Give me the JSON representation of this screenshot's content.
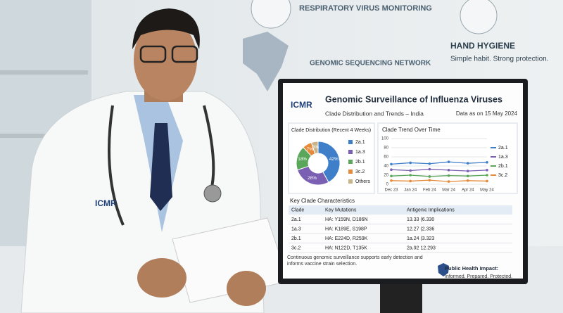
{
  "posters": {
    "virus": "RESPIRATORY VIRUS MONITORING",
    "genomic": "GENOMIC SEQUENCING NETWORK",
    "hygiene_title": "HAND HYGIENE",
    "hygiene_text": "Simple habit. Strong protection."
  },
  "coat_logo": "ICMR",
  "screen": {
    "logo": "ICMR",
    "title": "Genomic Surveillance of Influenza Viruses",
    "subtitle": "Clade Distribution and Trends – India",
    "date": "Data as on 15 May 2024",
    "donut": {
      "type": "pie",
      "title": "Clade Distribution (Recent 4 Weeks)",
      "categories": [
        "2a.1",
        "1a.3",
        "2b.1",
        "3c.2",
        "Others"
      ],
      "values": [
        42,
        28,
        18,
        7,
        5
      ],
      "value_labels": [
        "42%",
        "28%",
        "18%",
        "7%",
        "5%"
      ],
      "colors": [
        "#3f7fc9",
        "#7b5fb3",
        "#5aa65a",
        "#e48a3a",
        "#c9b48a"
      ]
    },
    "trend": {
      "type": "line",
      "title": "Clade Trend Over Time",
      "categories": [
        "Dec 23",
        "Jan 24",
        "Feb 24",
        "Mar 24",
        "Apr 24",
        "May 24"
      ],
      "ylim": [
        0,
        100
      ],
      "yticks": [
        0,
        20,
        40,
        60,
        80,
        100
      ],
      "grid": true,
      "series": [
        {
          "name": "2a.1",
          "color": "#3f7fc9",
          "values": [
            44,
            47,
            45,
            49,
            46,
            48
          ]
        },
        {
          "name": "1a.3",
          "color": "#7b5fb3",
          "values": [
            32,
            30,
            33,
            31,
            29,
            31
          ]
        },
        {
          "name": "2b.1",
          "color": "#5aa65a",
          "values": [
            18,
            20,
            17,
            19,
            18,
            20
          ]
        },
        {
          "name": "3c.2",
          "color": "#e48a3a",
          "values": [
            8,
            7,
            9,
            6,
            8,
            7
          ]
        }
      ]
    },
    "table": {
      "title": "Key Clade Characteristics",
      "header": [
        "Clade",
        "Key Mutations",
        "Antigenic Implications"
      ],
      "rows": [
        [
          "2a.1",
          "HA: Y159N, D186N",
          "13.33 (6.330"
        ],
        [
          "1a.3",
          "HA: K189E, S198P",
          "12.27 (2.336"
        ],
        [
          "2b.1",
          "HA: E224D, R259K",
          "1a.24 (3.323"
        ],
        [
          "3c.2",
          "HA: N122D, T135K",
          "2a.92 12.293"
        ]
      ]
    },
    "footer": "Continuous genomic surveillance supports early detection and informs vaccine strain selection.",
    "impact_title": "Public Health Impact:",
    "impact_text": "Informed. Prepared. Protected."
  }
}
